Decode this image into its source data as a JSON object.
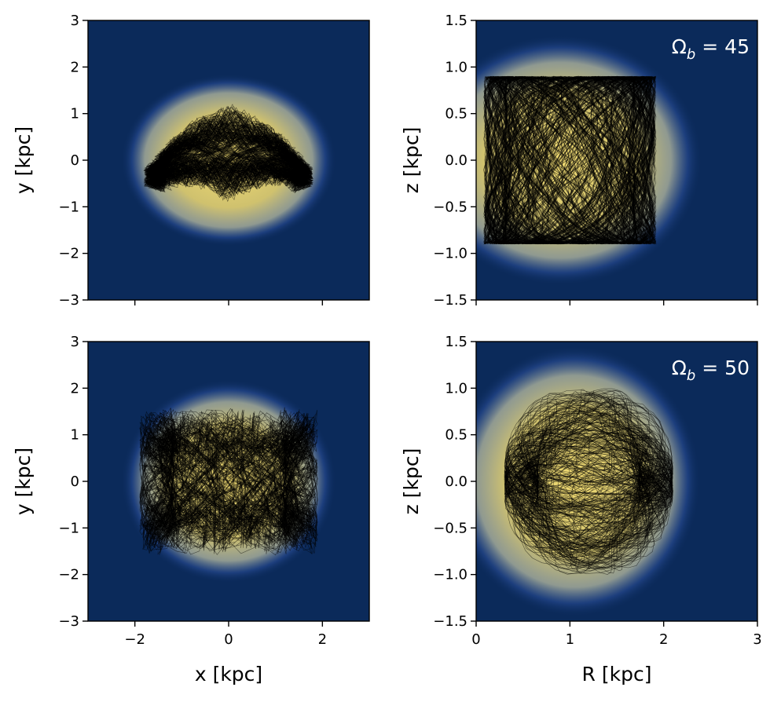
{
  "chart_data": [
    {
      "type": "heatmap",
      "panel": "top-left",
      "xlabel": "",
      "ylabel": "y [kpc]",
      "xlim": [
        -3,
        3
      ],
      "ylim": [
        -3,
        3
      ],
      "xticks": [
        -2,
        0,
        2
      ],
      "yticks": [
        -3,
        -2,
        -1,
        0,
        1,
        2,
        3
      ],
      "xtick_labels_shown": false,
      "annotation": "",
      "density_profile": {
        "cx": 0,
        "cy": 0,
        "rx": 2.05,
        "ry": 1.65
      },
      "orbit_family": "x-shaped bar orbits"
    },
    {
      "type": "heatmap",
      "panel": "top-right",
      "xlabel": "",
      "ylabel": "z [kpc]",
      "xlim": [
        0,
        3
      ],
      "ylim": [
        -1.5,
        1.5
      ],
      "xticks": [
        0,
        1,
        2,
        3
      ],
      "yticks": [
        -1.5,
        -1.0,
        -0.5,
        0.0,
        0.5,
        1.0,
        1.5
      ],
      "xtick_labels_shown": false,
      "annotation": "Ω_b = 45",
      "density_profile": {
        "cx": 0.9,
        "cy": 0,
        "rx": 1.35,
        "ry": 1.2
      },
      "orbit_family": "box-like R–z orbits"
    },
    {
      "type": "heatmap",
      "panel": "bottom-left",
      "xlabel": "x [kpc]",
      "ylabel": "y [kpc]",
      "xlim": [
        -3,
        3
      ],
      "ylim": [
        -3,
        3
      ],
      "xticks": [
        -2,
        0,
        2
      ],
      "yticks": [
        -3,
        -2,
        -1,
        0,
        1,
        2,
        3
      ],
      "xtick_labels_shown": true,
      "annotation": "",
      "density_profile": {
        "cx": 0,
        "cy": 0,
        "rx": 2.05,
        "ry": 1.95
      },
      "orbit_family": "looped elliptical orbits"
    },
    {
      "type": "heatmap",
      "panel": "bottom-right",
      "xlabel": "R [kpc]",
      "ylabel": "z [kpc]",
      "xlim": [
        0,
        3
      ],
      "ylim": [
        -1.5,
        1.5
      ],
      "xticks": [
        0,
        1,
        2,
        3
      ],
      "yticks": [
        -1.5,
        -1.0,
        -0.5,
        0.0,
        0.5,
        1.0,
        1.5
      ],
      "xtick_labels_shown": true,
      "annotation": "Ω_b = 50",
      "density_profile": {
        "cx": 1.05,
        "cy": 0,
        "rx": 1.2,
        "ry": 1.3
      },
      "orbit_family": "rounded R–z orbits"
    }
  ],
  "colors": {
    "background": "#0b2a5a",
    "mid": "#2b4f9a",
    "core": "#f2dc72",
    "orbit": "#000000",
    "annotation": "#ffffff"
  }
}
